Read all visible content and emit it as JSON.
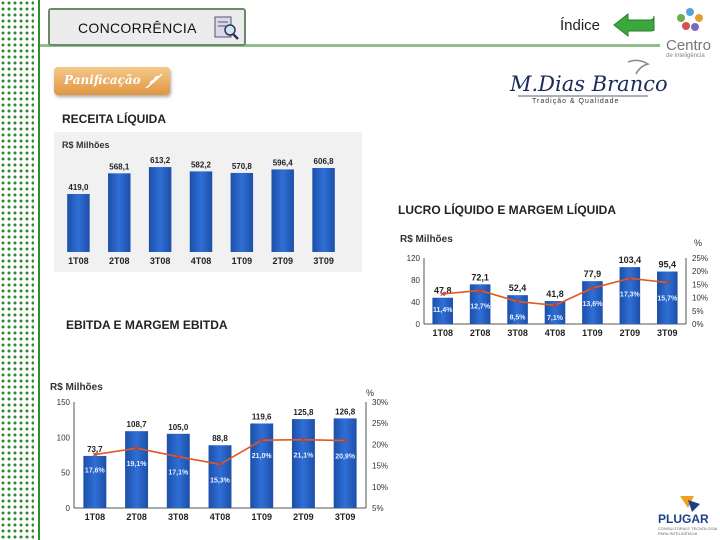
{
  "header": {
    "tab_label": "CONCORRÊNCIA",
    "indice_label": "Índice",
    "logo_centro_text": "Centro",
    "logo_centro_sub": "de Inteligência"
  },
  "section": {
    "panificacao_label": "Panificação",
    "company_logo_text": "M.Dias Branco",
    "company_logo_tagline": "Tradição & Qualidade"
  },
  "footer": {
    "plugar_text": "PLUGAR",
    "plugar_sub": "CONSULTORIA E TECNOLOGIA PARA INTELIGÊNCIA"
  },
  "colors": {
    "bar": "#2f6fd6",
    "line": "#e05a20",
    "accent_green": "#2e8b2e"
  },
  "chart_data": [
    {
      "type": "bar",
      "title": "RECEITA LÍQUIDA",
      "ylabel": "R$ Milhões",
      "categories": [
        "1T08",
        "2T08",
        "3T08",
        "4T08",
        "1T09",
        "2T09",
        "3T09"
      ],
      "values": [
        419.0,
        568.1,
        613.2,
        582.2,
        570.8,
        596.4,
        606.8
      ],
      "value_labels": [
        "419,0",
        "568,1",
        "613,2",
        "582,2",
        "570,8",
        "596,4",
        "606,8"
      ],
      "ylim": [
        0,
        650
      ]
    },
    {
      "type": "bar",
      "title": "LUCRO LÍQUIDO E MARGEM LÍQUIDA",
      "ylabel": "R$ Milhões",
      "y2label": "%",
      "categories": [
        "1T08",
        "2T08",
        "3T08",
        "4T08",
        "1T09",
        "2T09",
        "3T09"
      ],
      "values": [
        47.8,
        72.1,
        52.4,
        41.8,
        77.9,
        103.4,
        95.4
      ],
      "value_labels": [
        "47,8",
        "72,1",
        "52,4",
        "41,8",
        "77,9",
        "103,4",
        "95,4"
      ],
      "y_ticks": [
        "0",
        "40",
        "80",
        "120"
      ],
      "ylim": [
        0,
        120
      ],
      "line_series": {
        "values": [
          11.4,
          12.7,
          8.5,
          7.1,
          13.6,
          17.3,
          15.7
        ],
        "labels": [
          "11,4%",
          "12,7%",
          "8,5%",
          "7,1%",
          "13,6%",
          "17,3%",
          "15,7%"
        ]
      },
      "y2_ticks": [
        "0%",
        "5%",
        "10%",
        "15%",
        "20%",
        "25%"
      ],
      "y2lim": [
        0,
        25
      ]
    },
    {
      "type": "bar",
      "title": "EBITDA E MARGEM EBITDA",
      "ylabel": "R$ Milhões",
      "y2label": "%",
      "categories": [
        "1T08",
        "2T08",
        "3T08",
        "4T08",
        "1T09",
        "2T09",
        "3T09"
      ],
      "values": [
        73.7,
        108.7,
        105.0,
        88.8,
        119.6,
        125.8,
        126.8
      ],
      "value_labels": [
        "73,7",
        "108,7",
        "105,0",
        "88,8",
        "119,6",
        "125,8",
        "126,8"
      ],
      "y_ticks": [
        "0",
        "50",
        "100",
        "150"
      ],
      "ylim": [
        0,
        150
      ],
      "line_series": {
        "values": [
          17.6,
          19.1,
          17.1,
          15.3,
          21.0,
          21.1,
          20.9
        ],
        "labels": [
          "17,6%",
          "19,1%",
          "17,1%",
          "15,3%",
          "21,0%",
          "21,1%",
          "20,9%"
        ]
      },
      "y2_ticks": [
        "5%",
        "10%",
        "15%",
        "20%",
        "25%",
        "30%"
      ],
      "y2lim": [
        5,
        30
      ]
    }
  ]
}
